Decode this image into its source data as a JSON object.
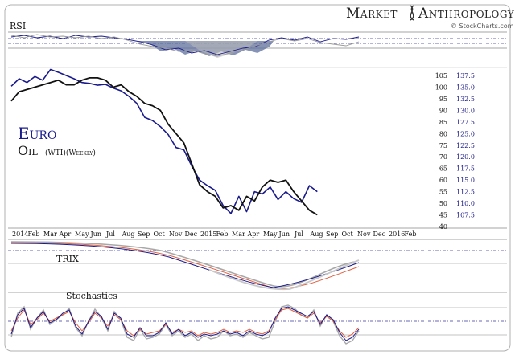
{
  "branding": {
    "brand_left": "Market",
    "brand_right": "Anthropology",
    "source": "© StockCharts.com"
  },
  "labels": {
    "rsi": "RSI",
    "trix": "TRIX",
    "stochastics": "Stochastics",
    "euro": "Euro",
    "oil": "Oil",
    "oil_sub": "(WTI)(Weekly)"
  },
  "colors": {
    "euro": "#1a1a8c",
    "oil": "#111111",
    "trix_red": "#e06040",
    "trix_gray": "#a8a8a8",
    "rsi_fill": "#5d6f9c",
    "rsi_gray": "#b8b8b8",
    "frame": "#888888",
    "band": "#3a3aa0"
  },
  "chart_data": {
    "type": "line",
    "title": "",
    "x_axis": {
      "tick_labels": [
        "2014",
        "Feb",
        "Mar",
        "Apr",
        "May",
        "Jun",
        "Jul",
        "Aug",
        "Sep",
        "Oct",
        "Nov",
        "Dec",
        "2015",
        "Feb",
        "Mar",
        "Apr",
        "May",
        "Jun",
        "Jul",
        "Aug",
        "Sep",
        "Oct",
        "Nov",
        "Dec",
        "2016",
        "Feb"
      ]
    },
    "y_left": {
      "label": "Oil",
      "ticks": [
        40,
        45,
        50,
        55,
        60,
        65,
        70,
        75,
        80,
        85,
        90,
        95,
        100,
        105
      ],
      "range": [
        40,
        105
      ]
    },
    "y_right": {
      "label": "Euro",
      "ticks": [
        107.5,
        110.0,
        112.5,
        115.0,
        117.5,
        120.0,
        122.5,
        125.0,
        127.5,
        130.0,
        132.5,
        135.0,
        137.5
      ],
      "range": [
        105,
        137.5
      ]
    },
    "series": [
      {
        "name": "Euro",
        "axis": "right",
        "x_month_index": [
          0,
          0.5,
          1,
          1.5,
          2,
          2.5,
          3,
          3.5,
          4,
          4.5,
          5,
          5.5,
          6,
          6.5,
          7,
          7.5,
          8,
          8.5,
          9,
          9.5,
          10,
          10.5,
          11,
          11.5,
          12,
          12.5,
          13,
          13.5,
          14,
          14.5,
          15,
          15.5,
          16,
          16.5,
          17,
          17.5,
          18,
          18.5,
          19,
          19.5
        ],
        "values": [
          135.2,
          136.8,
          136.0,
          137.3,
          136.5,
          138.8,
          138.2,
          137.5,
          136.8,
          136.0,
          135.8,
          135.4,
          135.6,
          134.8,
          134.2,
          133.0,
          131.5,
          128.5,
          127.8,
          126.5,
          124.8,
          122.0,
          121.5,
          118.0,
          115.0,
          113.8,
          112.8,
          109.5,
          107.8,
          111.5,
          108.2,
          112.5,
          112.0,
          113.5,
          110.8,
          112.5,
          111.0,
          110.2,
          113.8,
          112.5
        ]
      },
      {
        "name": "Oil",
        "axis": "left",
        "x_month_index": [
          0,
          0.5,
          1,
          1.5,
          2,
          2.5,
          3,
          3.5,
          4,
          4.5,
          5,
          5.5,
          6,
          6.5,
          7,
          7.5,
          8,
          8.5,
          9,
          9.5,
          10,
          10.5,
          11,
          11.5,
          12,
          12.5,
          13,
          13.5,
          14,
          14.5,
          15,
          15.5,
          16,
          16.5,
          17,
          17.5,
          18,
          18.5,
          19,
          19.5
        ],
        "values": [
          94,
          98,
          99,
          100,
          101,
          102,
          103,
          101,
          101,
          103,
          104,
          104,
          103,
          100,
          101,
          98,
          96,
          93,
          92,
          90,
          84,
          80,
          76,
          67,
          58,
          55,
          53,
          48,
          49,
          47,
          53,
          51,
          57,
          60,
          59,
          60,
          55,
          51,
          47,
          45
        ]
      }
    ],
    "panels": {
      "rsi": {
        "label": "RSI"
      },
      "trix": {
        "label": "TRIX"
      },
      "stochastics": {
        "label": "Stochastics"
      }
    },
    "grid": false,
    "legend": "left-inline"
  }
}
